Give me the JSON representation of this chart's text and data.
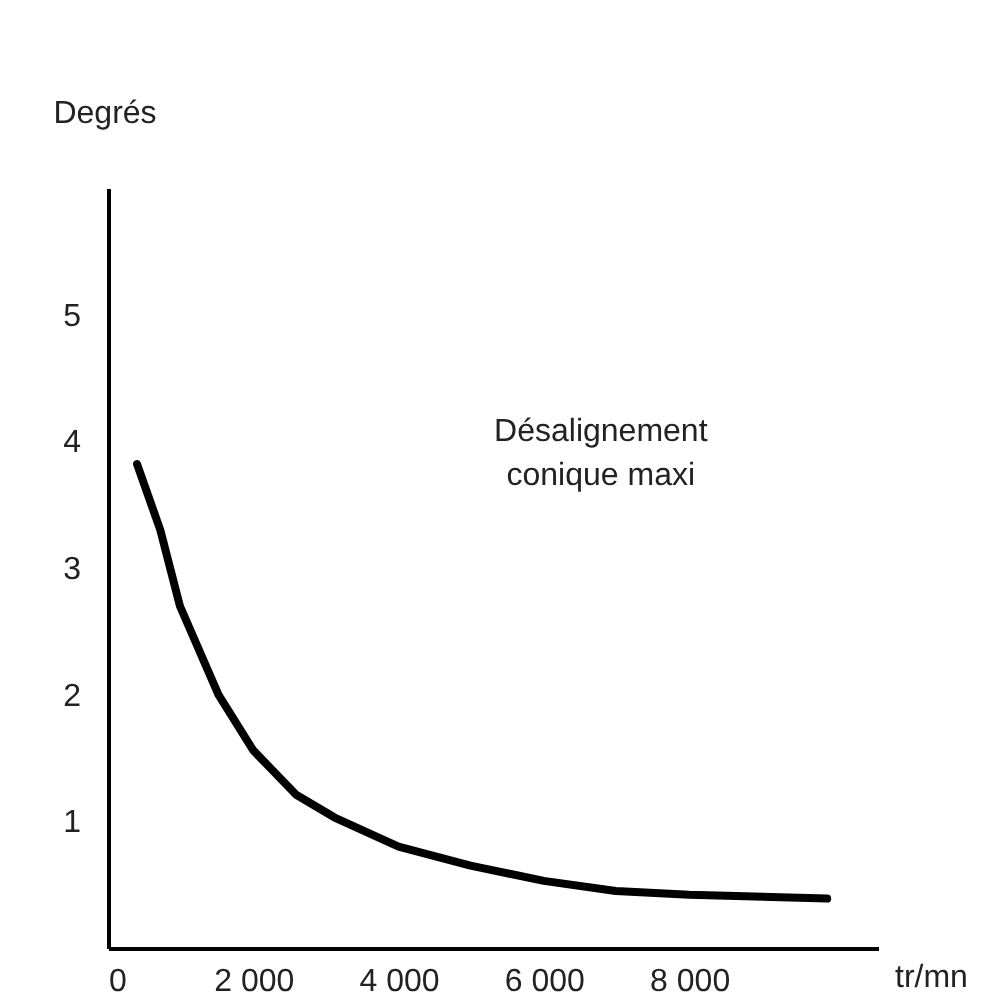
{
  "chart_data": {
    "type": "line",
    "xlabel": "tr/mn",
    "ylabel": "Degrés",
    "annotations": [
      "Désalignement\nconique maxi"
    ],
    "x": [
      400,
      720,
      990,
      1520,
      2000,
      2590,
      3120,
      4000,
      4990,
      6000,
      6990,
      8000,
      9900
    ],
    "series": [
      {
        "color": "#000000",
        "values": [
          3.82,
          3.3,
          2.7,
          2.0,
          1.56,
          1.21,
          1.03,
          0.8,
          0.65,
          0.53,
          0.45,
          0.42,
          0.39
        ]
      }
    ],
    "xlim": [
      0,
      10600
    ],
    "ylim": [
      0,
      6
    ],
    "xticks": [
      {
        "value": 0,
        "label": "0"
      },
      {
        "value": 2000,
        "label": "2 000"
      },
      {
        "value": 4000,
        "label": "4 000"
      },
      {
        "value": 6000,
        "label": "6 000"
      },
      {
        "value": 8000,
        "label": "8 000"
      }
    ],
    "yticks": [
      1,
      2,
      3,
      4,
      5
    ],
    "grid": false,
    "legend": false,
    "marker": "none",
    "line_style": "solid"
  }
}
